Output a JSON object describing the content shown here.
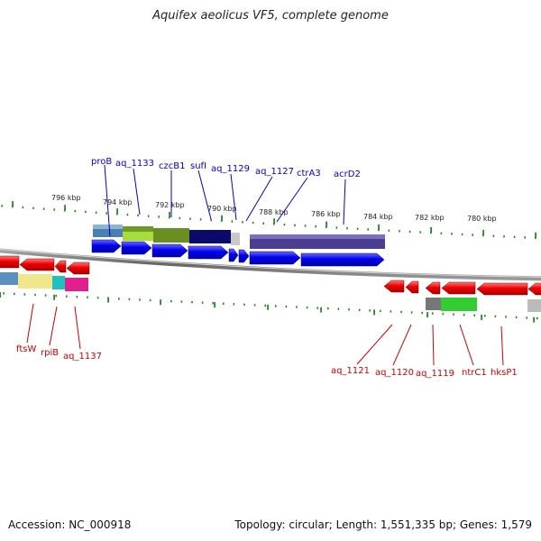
{
  "title": "Aquifex aeolicus VF5, complete genome",
  "footer": {
    "accession": "Accession: NC_000918",
    "summary": "Topology: circular; Length: 1,551,335 bp; Genes: 1,579"
  },
  "scale_labels": [
    "796 kbp",
    "794 kbp",
    "792 kbp",
    "790 kbp",
    "788 kbp",
    "786 kbp",
    "784 kbp",
    "782 kbp",
    "780 kbp"
  ],
  "forward_gene_labels": [
    "proB",
    "aq_1133",
    "czcB1",
    "sufI",
    "aq_1129",
    "aq_1127",
    "ctrA3",
    "acrD2"
  ],
  "reverse_gene_labels": [
    "ftsW",
    "rpiB",
    "aq_1137",
    "aq_1121",
    "aq_1120",
    "aq_1119",
    "ntrC1",
    "hksP1"
  ],
  "colors": {
    "forward_label": "#0000cc",
    "reverse_label": "#cc0000",
    "forward_gene": "#0000ee",
    "reverse_gene": "#ee0000",
    "tick": "#228b22",
    "backbone": "#777777"
  }
}
